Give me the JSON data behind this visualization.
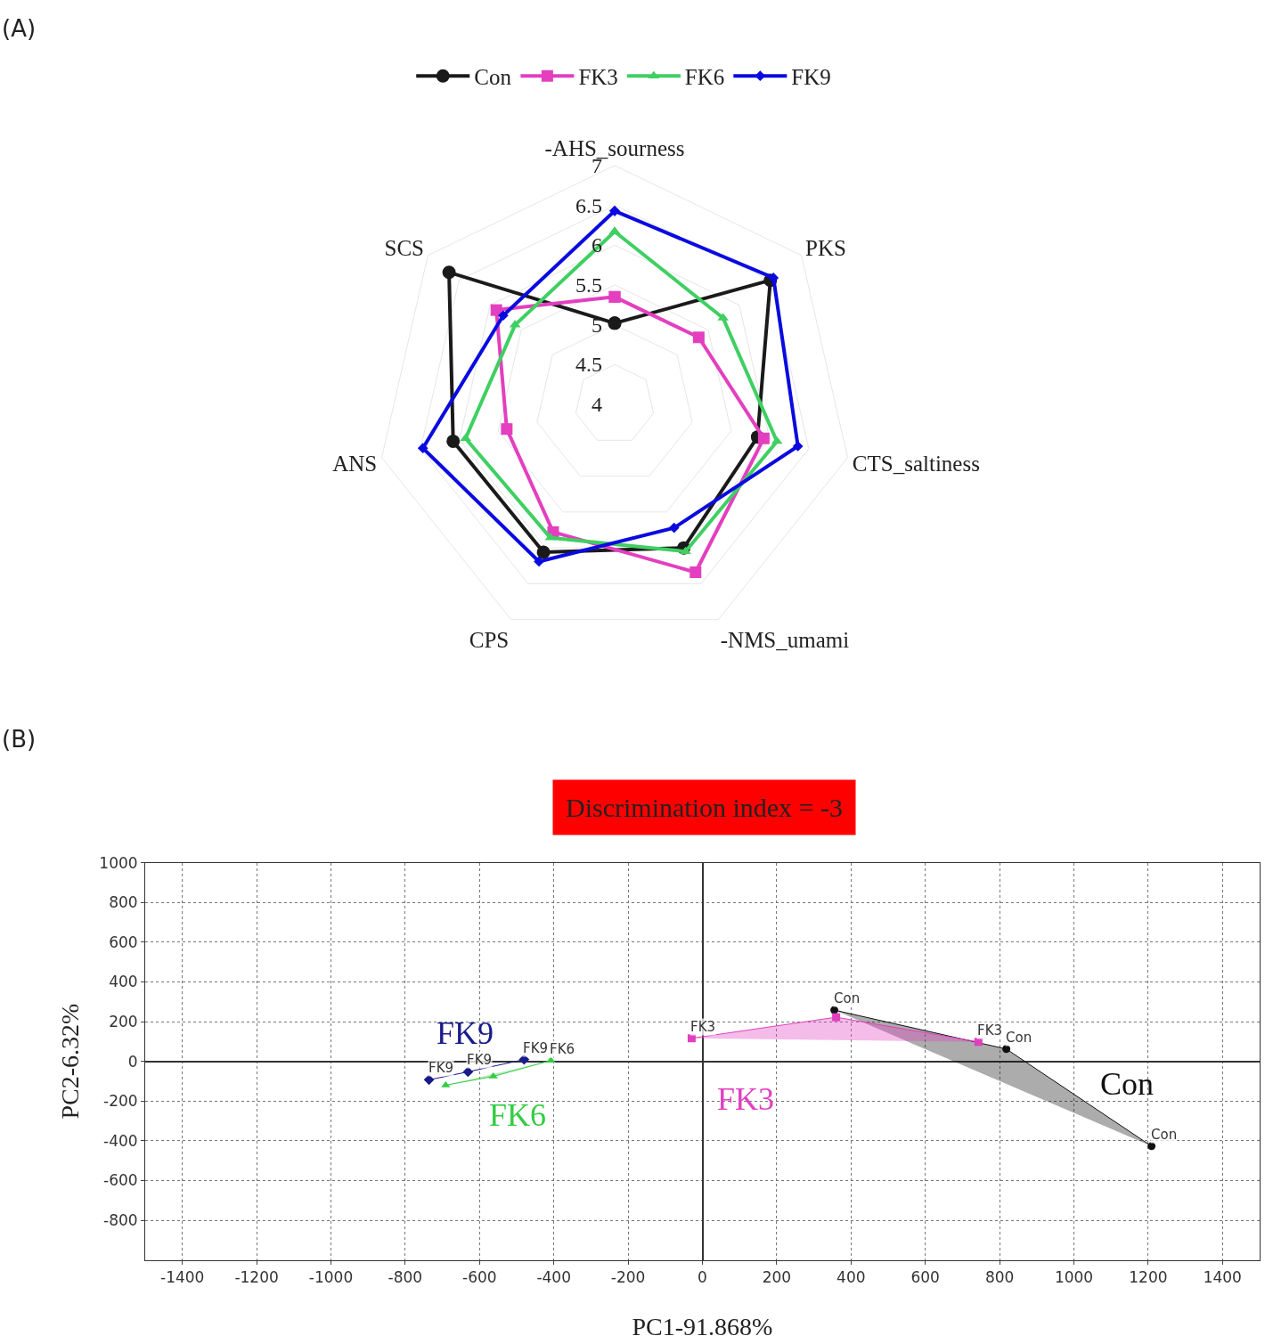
{
  "chart_data": [
    {
      "type": "radar",
      "annotations": [
        "(A)"
      ],
      "categories": [
        "-AHS_sourness",
        "PKS",
        "CTS_saltiness",
        "-NMS_umami",
        "CPS",
        "ANS",
        "SCS"
      ],
      "series": [
        {
          "name": "Con",
          "color": "#1a1a1a",
          "marker": "circle",
          "values": [
            5.02,
            6.5,
            5.84,
            6.0,
            6.06,
            6.08,
            6.66
          ]
        },
        {
          "name": "FK3",
          "color": "#e33fbf",
          "marker": "square",
          "values": [
            5.35,
            5.35,
            5.92,
            6.34,
            5.78,
            5.39,
            5.9
          ]
        },
        {
          "name": "FK6",
          "color": "#3fcf62",
          "marker": "triangle",
          "values": [
            6.17,
            5.74,
            6.09,
            6.05,
            5.86,
            5.92,
            5.6
          ]
        },
        {
          "name": "FK9",
          "color": "#0a0ae0",
          "marker": "diamond",
          "values": [
            6.43,
            6.55,
            6.36,
            5.72,
            6.19,
            6.47,
            5.79
          ]
        }
      ],
      "ylim": [
        4,
        7
      ],
      "yticks": [
        4,
        4.5,
        5,
        5.5,
        6,
        6.5,
        7
      ],
      "grid": true,
      "legend": "top"
    },
    {
      "type": "scatter",
      "title": "Discrimination index = -3",
      "xlabel": "PC1-91.868%",
      "ylabel": "PC2-6.32%",
      "annotations": [
        "(B)",
        {
          "text": "Con",
          "x": 355,
          "y": 258
        },
        {
          "text": "Con",
          "x": 818,
          "y": 62
        },
        {
          "text": "Con",
          "x": 1209,
          "y": -427
        },
        {
          "text": "FK3",
          "x": -29,
          "y": 116
        },
        {
          "text": "FK3",
          "x": 743,
          "y": 98
        },
        {
          "text": "FK9",
          "x": -480,
          "y": 9
        },
        {
          "text": "FK9",
          "x": -631,
          "y": -53
        },
        {
          "text": "FK9",
          "x": -736,
          "y": -93
        },
        {
          "text": "FK6",
          "x": -408,
          "y": 4
        }
      ],
      "series": [
        {
          "name": "Con",
          "color": "#111111",
          "marker": "circle",
          "x": [
            355,
            818,
            1209
          ],
          "values": [
            258,
            62,
            -427
          ]
        },
        {
          "name": "FK3",
          "color": "#e040c0",
          "marker": "square",
          "x": [
            -29,
            360,
            743
          ],
          "values": [
            116,
            222,
            98
          ]
        },
        {
          "name": "FK6",
          "color": "#33cc44",
          "marker": "triangle",
          "x": [
            -691,
            -563,
            -408
          ],
          "values": [
            -120,
            -76,
            4
          ]
        },
        {
          "name": "FK9",
          "color": "#1a1a8c",
          "marker": "diamond",
          "x": [
            -736,
            -631,
            -480
          ],
          "values": [
            -93,
            -53,
            9
          ]
        }
      ],
      "xlim": [
        -1500,
        1500
      ],
      "ylim": [
        -1000,
        1000
      ],
      "xticks": [
        -1400,
        -1200,
        -1000,
        -800,
        -600,
        -400,
        -200,
        0,
        200,
        400,
        600,
        800,
        1000,
        1200,
        1400
      ],
      "yticks": [
        -800,
        -600,
        -400,
        -200,
        0,
        200,
        400,
        600,
        800,
        1000
      ],
      "grid": true
    }
  ]
}
